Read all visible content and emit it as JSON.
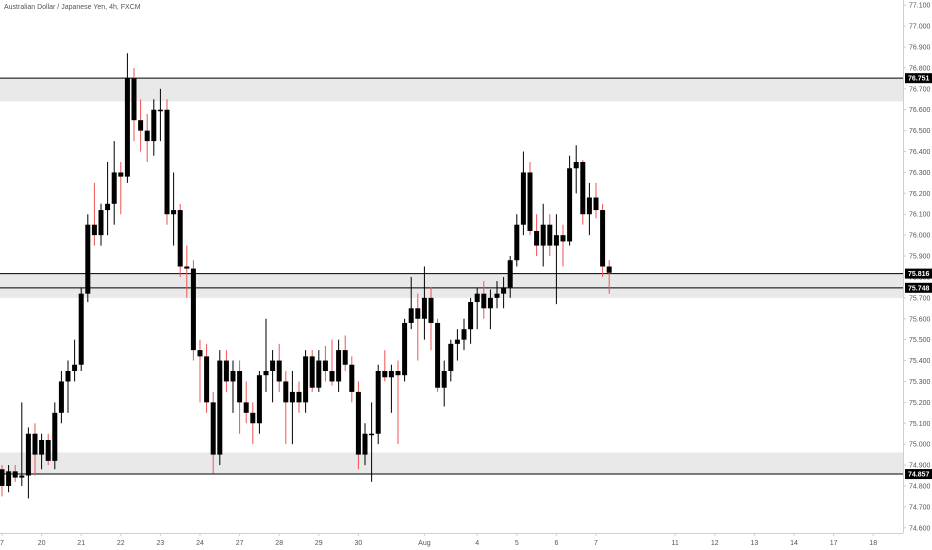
{
  "header": {
    "title": "Australian Dollar / Japanese Yen, 4h, FXCM"
  },
  "colors": {
    "candle": "#000000",
    "wick_bear": "#ef5350",
    "wick_bull": "#000000",
    "zone_fill": "#e9e9e9",
    "line": "#000000",
    "axis_text": "#555555",
    "grid_axis": "#cfcfcf"
  },
  "chart_data": {
    "type": "candlestick",
    "title": "Australian Dollar / Japanese Yen, 4h, FXCM",
    "ylim": [
      74.575,
      77.125
    ],
    "y_ticks": [
      "74.600",
      "74.700",
      "74.800",
      "74.900",
      "75.000",
      "75.100",
      "75.200",
      "75.300",
      "75.400",
      "75.500",
      "75.600",
      "75.700",
      "75.800",
      "75.900",
      "76.000",
      "76.100",
      "76.200",
      "76.300",
      "76.400",
      "76.500",
      "76.600",
      "76.700",
      "76.800",
      "76.900",
      "77.000",
      "77.100"
    ],
    "x_ticks": [
      {
        "label": "7",
        "i": 0
      },
      {
        "label": "20",
        "i": 6
      },
      {
        "label": "21",
        "i": 12
      },
      {
        "label": "22",
        "i": 18
      },
      {
        "label": "23",
        "i": 24
      },
      {
        "label": "24",
        "i": 30
      },
      {
        "label": "27",
        "i": 36
      },
      {
        "label": "28",
        "i": 42
      },
      {
        "label": "29",
        "i": 48
      },
      {
        "label": "30",
        "i": 54
      },
      {
        "label": "Aug",
        "i": 64
      },
      {
        "label": "4",
        "i": 72
      },
      {
        "label": "5",
        "i": 78
      },
      {
        "label": "6",
        "i": 84
      },
      {
        "label": "7",
        "i": 90
      },
      {
        "label": "11",
        "i": 102
      },
      {
        "label": "12",
        "i": 108
      },
      {
        "label": "13",
        "i": 114
      },
      {
        "label": "14",
        "i": 120
      },
      {
        "label": "17",
        "i": 126
      },
      {
        "label": "18",
        "i": 132
      }
    ],
    "levels": [
      {
        "value": 76.751,
        "label": "76.751"
      },
      {
        "value": 75.816,
        "label": "75.816"
      },
      {
        "value": 75.748,
        "label": "75.748"
      },
      {
        "value": 74.857,
        "label": "74.857"
      }
    ],
    "zones": [
      {
        "from": 76.64,
        "to": 76.751
      },
      {
        "from": 75.748,
        "to": 75.816
      },
      {
        "from": 75.7,
        "to": 75.748
      },
      {
        "from": 74.857,
        "to": 74.96
      }
    ],
    "candles": [
      {
        "o": 74.88,
        "h": 74.9,
        "l": 74.75,
        "c": 74.8
      },
      {
        "o": 74.8,
        "h": 74.9,
        "l": 74.77,
        "c": 74.87
      },
      {
        "o": 74.87,
        "h": 74.9,
        "l": 74.82,
        "c": 74.84
      },
      {
        "o": 74.84,
        "h": 75.2,
        "l": 74.8,
        "c": 74.85
      },
      {
        "o": 74.85,
        "h": 75.08,
        "l": 74.74,
        "c": 75.05
      },
      {
        "o": 75.05,
        "h": 75.1,
        "l": 74.85,
        "c": 74.95
      },
      {
        "o": 74.95,
        "h": 75.05,
        "l": 74.88,
        "c": 75.02
      },
      {
        "o": 75.02,
        "h": 75.05,
        "l": 74.9,
        "c": 74.92
      },
      {
        "o": 74.92,
        "h": 75.2,
        "l": 74.88,
        "c": 75.15
      },
      {
        "o": 75.15,
        "h": 75.35,
        "l": 75.1,
        "c": 75.3
      },
      {
        "o": 75.3,
        "h": 75.4,
        "l": 75.15,
        "c": 75.35
      },
      {
        "o": 75.35,
        "h": 75.5,
        "l": 75.3,
        "c": 75.38
      },
      {
        "o": 75.38,
        "h": 75.75,
        "l": 75.35,
        "c": 75.72
      },
      {
        "o": 75.72,
        "h": 76.1,
        "l": 75.68,
        "c": 76.05
      },
      {
        "o": 76.05,
        "h": 76.25,
        "l": 75.95,
        "c": 76.0
      },
      {
        "o": 76.0,
        "h": 76.15,
        "l": 75.95,
        "c": 76.12
      },
      {
        "o": 76.12,
        "h": 76.35,
        "l": 76.0,
        "c": 76.15
      },
      {
        "o": 76.15,
        "h": 76.45,
        "l": 76.05,
        "c": 76.3
      },
      {
        "o": 76.3,
        "h": 76.35,
        "l": 76.1,
        "c": 76.28
      },
      {
        "o": 76.28,
        "h": 76.87,
        "l": 76.25,
        "c": 76.75
      },
      {
        "o": 76.75,
        "h": 76.8,
        "l": 76.45,
        "c": 76.55
      },
      {
        "o": 76.55,
        "h": 76.65,
        "l": 76.4,
        "c": 76.5
      },
      {
        "o": 76.5,
        "h": 76.58,
        "l": 76.35,
        "c": 76.45
      },
      {
        "o": 76.45,
        "h": 76.65,
        "l": 76.38,
        "c": 76.6
      },
      {
        "o": 76.6,
        "h": 76.7,
        "l": 76.45,
        "c": 76.6
      },
      {
        "o": 76.6,
        "h": 76.65,
        "l": 76.05,
        "c": 76.1
      },
      {
        "o": 76.1,
        "h": 76.3,
        "l": 75.95,
        "c": 76.12
      },
      {
        "o": 76.12,
        "h": 76.15,
        "l": 75.8,
        "c": 75.85
      },
      {
        "o": 75.85,
        "h": 75.95,
        "l": 75.7,
        "c": 75.84
      },
      {
        "o": 75.84,
        "h": 75.88,
        "l": 75.4,
        "c": 75.45
      },
      {
        "o": 75.45,
        "h": 75.5,
        "l": 75.2,
        "c": 75.42
      },
      {
        "o": 75.42,
        "h": 75.48,
        "l": 75.15,
        "c": 75.2
      },
      {
        "o": 75.2,
        "h": 75.25,
        "l": 74.86,
        "c": 74.95
      },
      {
        "o": 74.95,
        "h": 75.45,
        "l": 74.9,
        "c": 75.4
      },
      {
        "o": 75.4,
        "h": 75.45,
        "l": 75.25,
        "c": 75.3
      },
      {
        "o": 75.3,
        "h": 75.4,
        "l": 75.15,
        "c": 75.35
      },
      {
        "o": 75.35,
        "h": 75.4,
        "l": 75.05,
        "c": 75.2
      },
      {
        "o": 75.2,
        "h": 75.3,
        "l": 75.1,
        "c": 75.15
      },
      {
        "o": 75.15,
        "h": 75.2,
        "l": 75.0,
        "c": 75.1
      },
      {
        "o": 75.1,
        "h": 75.35,
        "l": 75.05,
        "c": 75.33
      },
      {
        "o": 75.33,
        "h": 75.6,
        "l": 75.25,
        "c": 75.35
      },
      {
        "o": 75.35,
        "h": 75.45,
        "l": 75.2,
        "c": 75.4
      },
      {
        "o": 75.4,
        "h": 75.48,
        "l": 75.25,
        "c": 75.3
      },
      {
        "o": 75.3,
        "h": 75.35,
        "l": 75.0,
        "c": 75.2
      },
      {
        "o": 75.2,
        "h": 75.35,
        "l": 75.0,
        "c": 75.25
      },
      {
        "o": 75.25,
        "h": 75.3,
        "l": 75.15,
        "c": 75.2
      },
      {
        "o": 75.2,
        "h": 75.45,
        "l": 75.15,
        "c": 75.42
      },
      {
        "o": 75.42,
        "h": 75.45,
        "l": 75.25,
        "c": 75.27
      },
      {
        "o": 75.27,
        "h": 75.45,
        "l": 75.25,
        "c": 75.4
      },
      {
        "o": 75.4,
        "h": 75.47,
        "l": 75.3,
        "c": 75.35
      },
      {
        "o": 75.35,
        "h": 75.5,
        "l": 75.28,
        "c": 75.3
      },
      {
        "o": 75.3,
        "h": 75.5,
        "l": 75.25,
        "c": 75.45
      },
      {
        "o": 75.45,
        "h": 75.52,
        "l": 75.35,
        "c": 75.38
      },
      {
        "o": 75.38,
        "h": 75.42,
        "l": 75.2,
        "c": 75.25
      },
      {
        "o": 75.25,
        "h": 75.3,
        "l": 74.88,
        "c": 74.95
      },
      {
        "o": 74.95,
        "h": 75.1,
        "l": 74.9,
        "c": 75.05
      },
      {
        "o": 75.05,
        "h": 75.2,
        "l": 74.82,
        "c": 75.05
      },
      {
        "o": 75.05,
        "h": 75.38,
        "l": 75.0,
        "c": 75.35
      },
      {
        "o": 75.35,
        "h": 75.45,
        "l": 75.3,
        "c": 75.32
      },
      {
        "o": 75.32,
        "h": 75.38,
        "l": 75.15,
        "c": 75.35
      },
      {
        "o": 75.35,
        "h": 75.4,
        "l": 75.0,
        "c": 75.33
      },
      {
        "o": 75.33,
        "h": 75.6,
        "l": 75.3,
        "c": 75.58
      },
      {
        "o": 75.58,
        "h": 75.8,
        "l": 75.55,
        "c": 75.65
      },
      {
        "o": 75.65,
        "h": 75.72,
        "l": 75.4,
        "c": 75.6
      },
      {
        "o": 75.6,
        "h": 75.85,
        "l": 75.5,
        "c": 75.7
      },
      {
        "o": 75.7,
        "h": 75.75,
        "l": 75.45,
        "c": 75.58
      },
      {
        "o": 75.58,
        "h": 75.6,
        "l": 75.25,
        "c": 75.27
      },
      {
        "o": 75.27,
        "h": 75.4,
        "l": 75.18,
        "c": 75.35
      },
      {
        "o": 75.35,
        "h": 75.5,
        "l": 75.3,
        "c": 75.48
      },
      {
        "o": 75.48,
        "h": 75.55,
        "l": 75.4,
        "c": 75.5
      },
      {
        "o": 75.5,
        "h": 75.6,
        "l": 75.45,
        "c": 75.55
      },
      {
        "o": 75.55,
        "h": 75.7,
        "l": 75.48,
        "c": 75.68
      },
      {
        "o": 75.68,
        "h": 75.75,
        "l": 75.55,
        "c": 75.72
      },
      {
        "o": 75.72,
        "h": 75.78,
        "l": 75.6,
        "c": 75.65
      },
      {
        "o": 75.65,
        "h": 75.74,
        "l": 75.55,
        "c": 75.7
      },
      {
        "o": 75.7,
        "h": 75.78,
        "l": 75.65,
        "c": 75.72
      },
      {
        "o": 75.72,
        "h": 75.8,
        "l": 75.65,
        "c": 75.75
      },
      {
        "o": 75.75,
        "h": 75.9,
        "l": 75.7,
        "c": 75.88
      },
      {
        "o": 75.88,
        "h": 76.1,
        "l": 75.85,
        "c": 76.05
      },
      {
        "o": 76.05,
        "h": 76.4,
        "l": 76.0,
        "c": 76.3
      },
      {
        "o": 76.3,
        "h": 76.35,
        "l": 76.0,
        "c": 76.02
      },
      {
        "o": 76.02,
        "h": 76.1,
        "l": 75.9,
        "c": 75.95
      },
      {
        "o": 75.95,
        "h": 76.15,
        "l": 75.85,
        "c": 76.05
      },
      {
        "o": 76.05,
        "h": 76.1,
        "l": 75.9,
        "c": 75.95
      },
      {
        "o": 75.95,
        "h": 76.1,
        "l": 75.67,
        "c": 76.0
      },
      {
        "o": 76.0,
        "h": 76.05,
        "l": 75.85,
        "c": 75.97
      },
      {
        "o": 75.97,
        "h": 76.38,
        "l": 75.95,
        "c": 76.32
      },
      {
        "o": 76.32,
        "h": 76.43,
        "l": 76.2,
        "c": 76.35
      },
      {
        "o": 76.35,
        "h": 76.36,
        "l": 76.05,
        "c": 76.1
      },
      {
        "o": 76.1,
        "h": 76.25,
        "l": 76.0,
        "c": 76.18
      },
      {
        "o": 76.18,
        "h": 76.25,
        "l": 76.08,
        "c": 76.12
      },
      {
        "o": 76.12,
        "h": 76.15,
        "l": 75.8,
        "c": 75.85
      },
      {
        "o": 75.85,
        "h": 75.88,
        "l": 75.72,
        "c": 75.82
      }
    ]
  }
}
